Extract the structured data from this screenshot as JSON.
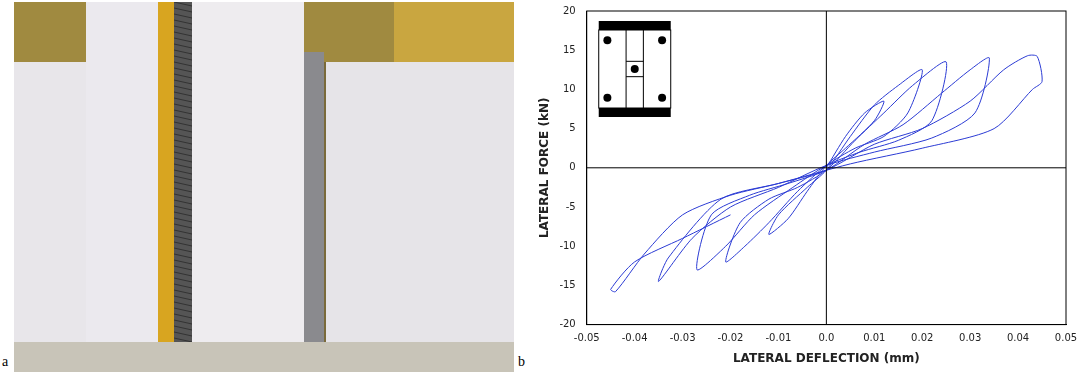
{
  "panel_labels": [
    "a",
    "b"
  ],
  "chart_data": {
    "type": "line",
    "x_label": "LATERAL DEFLECTION (mm)",
    "y_label": "LATERAL FORCE (kN)",
    "color": "#2b3bd4",
    "marker": "none",
    "line_style": "solid",
    "grid": false,
    "xlim": [
      -0.05,
      0.05
    ],
    "xticks": [
      -0.05,
      -0.04,
      -0.03,
      -0.02,
      -0.01,
      {
        "value": 0,
        "label": "0.0"
      },
      0.01,
      0.02,
      0.03,
      0.04,
      0.05
    ],
    "ylim": [
      -20,
      20
    ],
    "yticks": [
      -20,
      -15,
      -10,
      -5,
      0,
      5,
      10,
      15,
      20
    ],
    "x": [
      0,
      0.004,
      0.008,
      0.012,
      0.01,
      0.004,
      0,
      -0.004,
      -0.008,
      -0.012,
      -0.01,
      -0.004,
      0,
      0.005,
      0.01,
      0.015,
      0.02,
      0.017,
      0.012,
      0.006,
      0,
      -0.006,
      -0.012,
      -0.017,
      -0.021,
      -0.018,
      -0.012,
      -0.006,
      0,
      0.006,
      0.012,
      0.018,
      0.025,
      0.022,
      0.015,
      0.007,
      0,
      -0.007,
      -0.015,
      -0.021,
      -0.027,
      -0.024,
      -0.016,
      -0.008,
      0,
      0.008,
      0.016,
      0.024,
      0.03,
      0.034,
      0.031,
      0.022,
      0.01,
      0,
      -0.01,
      -0.02,
      -0.028,
      -0.035,
      -0.033,
      -0.022,
      -0.01,
      0,
      0.01,
      0.02,
      0.03,
      0.037,
      0.042,
      0.044,
      0.045,
      0.043,
      0.035,
      0.02,
      0.005,
      -0.01,
      -0.02,
      -0.03,
      -0.038,
      -0.044,
      -0.045,
      -0.04,
      -0.03,
      -0.02
    ],
    "values": [
      0,
      4,
      7,
      8.5,
      6,
      2.5,
      0.3,
      -3,
      -6.5,
      -8.5,
      -6,
      -2.5,
      -0.3,
      4,
      8,
      10.5,
      12.5,
      7,
      4,
      2.5,
      0.3,
      -3,
      -7,
      -10,
      -12,
      -7,
      -4,
      -2.5,
      -0.3,
      3.5,
      7,
      10.5,
      13.5,
      6,
      3.5,
      2,
      0.3,
      -2.5,
      -6,
      -10,
      -13,
      -6,
      -3.5,
      -2,
      -0.3,
      3,
      5.5,
      9.5,
      12.5,
      14,
      7,
      3.8,
      2,
      0.3,
      -2.5,
      -5,
      -9,
      -14.5,
      -11.5,
      -4,
      -2,
      -0.3,
      3,
      5,
      8.5,
      12.5,
      14.3,
      14.2,
      11,
      10,
      5,
      2.5,
      0.5,
      -2,
      -3.5,
      -6,
      -11,
      -15.8,
      -15.5,
      -12,
      -9,
      -6
    ]
  }
}
